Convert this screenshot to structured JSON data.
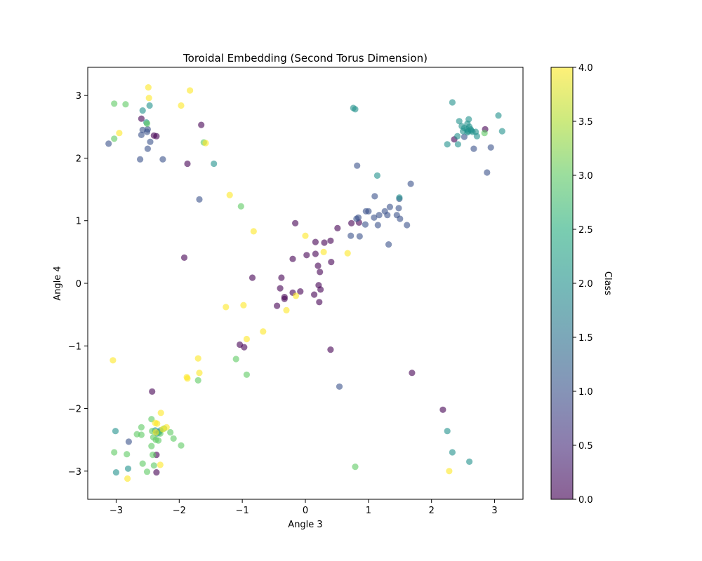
{
  "chart_data": {
    "type": "scatter",
    "title": "Toroidal Embedding (Second Torus Dimension)",
    "xlabel": "Angle 3",
    "ylabel": "Angle 4",
    "xlim": [
      -3.45,
      3.45
    ],
    "ylim": [
      -3.45,
      3.45
    ],
    "xticks": [
      -3,
      -2,
      -1,
      0,
      1,
      2,
      3
    ],
    "yticks": [
      -3,
      -2,
      -1,
      0,
      1,
      2,
      3
    ],
    "xtick_labels": [
      "−3",
      "−2",
      "−1",
      "0",
      "1",
      "2",
      "3"
    ],
    "ytick_labels": [
      "−3",
      "−2",
      "−1",
      "0",
      "1",
      "2",
      "3"
    ],
    "grid": false,
    "colormap": "viridis",
    "point_alpha": 0.6,
    "colorbar": {
      "label": "Class",
      "range": [
        0.0,
        4.0
      ],
      "ticks": [
        0.0,
        0.5,
        1.0,
        1.5,
        2.0,
        2.5,
        3.0,
        3.5,
        4.0
      ],
      "tick_labels": [
        "0.0",
        "0.5",
        "1.0",
        "1.5",
        "2.0",
        "2.5",
        "3.0",
        "3.5",
        "4.0"
      ]
    },
    "series": [
      {
        "class": 0,
        "color": "#440154",
        "points": [
          [
            -0.16,
            0.96
          ],
          [
            0.16,
            0.66
          ],
          [
            0.3,
            0.65
          ],
          [
            0.4,
            0.68
          ],
          [
            0.51,
            0.88
          ],
          [
            0.02,
            0.45
          ],
          [
            0.16,
            0.47
          ],
          [
            -0.2,
            0.39
          ],
          [
            0.41,
            0.34
          ],
          [
            0.2,
            0.28
          ],
          [
            0.23,
            0.18
          ],
          [
            -0.84,
            0.09
          ],
          [
            -0.38,
            0.09
          ],
          [
            -0.4,
            -0.08
          ],
          [
            -0.2,
            -0.15
          ],
          [
            -0.08,
            -0.13
          ],
          [
            0.21,
            -0.03
          ],
          [
            0.24,
            -0.1
          ],
          [
            -0.33,
            -0.22
          ],
          [
            -0.33,
            -0.25
          ],
          [
            0.14,
            -0.18
          ],
          [
            0.22,
            -0.3
          ],
          [
            -0.45,
            -0.36
          ],
          [
            -1.04,
            -0.98
          ],
          [
            -0.97,
            -1.02
          ],
          [
            0.4,
            -1.06
          ],
          [
            -1.92,
            0.41
          ],
          [
            -1.87,
            1.91
          ],
          [
            -1.65,
            2.53
          ],
          [
            -2.4,
            2.36
          ],
          [
            -2.36,
            2.35
          ],
          [
            -2.6,
            2.63
          ],
          [
            -2.43,
            -1.73
          ],
          [
            -2.36,
            -2.74
          ],
          [
            -2.36,
            -3.02
          ],
          [
            1.69,
            -1.43
          ],
          [
            2.18,
            -2.02
          ],
          [
            2.85,
            2.46
          ],
          [
            2.36,
            2.3
          ],
          [
            0.73,
            0.96
          ],
          [
            0.85,
            0.97
          ]
        ]
      },
      {
        "class": 1,
        "color": "#3b528b",
        "points": [
          [
            -3.12,
            2.23
          ],
          [
            -2.62,
            1.98
          ],
          [
            -2.26,
            1.98
          ],
          [
            -2.5,
            2.15
          ],
          [
            -2.46,
            2.26
          ],
          [
            -2.6,
            2.37
          ],
          [
            -2.51,
            2.42
          ],
          [
            -2.5,
            2.46
          ],
          [
            -2.58,
            2.45
          ],
          [
            -1.68,
            1.34
          ],
          [
            0.82,
            1.88
          ],
          [
            1.67,
            1.59
          ],
          [
            1.1,
            1.39
          ],
          [
            1.49,
            1.35
          ],
          [
            1.34,
            1.22
          ],
          [
            1.26,
            1.15
          ],
          [
            1.48,
            1.2
          ],
          [
            1.0,
            1.15
          ],
          [
            0.96,
            1.15
          ],
          [
            1.17,
            1.09
          ],
          [
            1.09,
            1.05
          ],
          [
            1.3,
            1.09
          ],
          [
            1.45,
            1.09
          ],
          [
            1.5,
            1.03
          ],
          [
            0.81,
            1.03
          ],
          [
            0.84,
            1.05
          ],
          [
            0.95,
            0.94
          ],
          [
            1.15,
            0.93
          ],
          [
            1.61,
            0.93
          ],
          [
            0.72,
            0.76
          ],
          [
            0.86,
            0.75
          ],
          [
            1.32,
            0.62
          ],
          [
            0.54,
            -1.65
          ],
          [
            2.67,
            2.15
          ],
          [
            2.94,
            2.17
          ],
          [
            2.88,
            1.77
          ],
          [
            2.52,
            2.34
          ],
          [
            -2.8,
            -2.53
          ]
        ]
      },
      {
        "class": 2,
        "color": "#21918c",
        "points": [
          [
            -2.47,
            2.84
          ],
          [
            -2.58,
            2.76
          ],
          [
            -2.52,
            2.57
          ],
          [
            -1.45,
            1.91
          ],
          [
            0.76,
            2.8
          ],
          [
            0.79,
            2.78
          ],
          [
            2.33,
            2.89
          ],
          [
            3.06,
            2.68
          ],
          [
            3.12,
            2.43
          ],
          [
            2.25,
            2.22
          ],
          [
            2.42,
            2.22
          ],
          [
            2.44,
            2.59
          ],
          [
            2.48,
            2.51
          ],
          [
            2.56,
            2.46
          ],
          [
            2.59,
            2.62
          ],
          [
            2.57,
            2.55
          ],
          [
            2.6,
            2.5
          ],
          [
            2.62,
            2.46
          ],
          [
            2.65,
            2.42
          ],
          [
            2.7,
            2.42
          ],
          [
            2.72,
            2.35
          ],
          [
            2.58,
            2.43
          ],
          [
            2.5,
            2.43
          ],
          [
            2.57,
            2.41
          ],
          [
            2.63,
            2.44
          ],
          [
            2.52,
            2.48
          ],
          [
            2.41,
            2.35
          ],
          [
            1.14,
            1.72
          ],
          [
            1.49,
            1.37
          ],
          [
            2.25,
            -2.36
          ],
          [
            2.33,
            -2.7
          ],
          [
            2.6,
            -2.85
          ],
          [
            -3.01,
            -2.36
          ],
          [
            -3.0,
            -3.02
          ],
          [
            -2.81,
            -2.96
          ],
          [
            -2.38,
            -2.35
          ],
          [
            -2.32,
            -2.38
          ],
          [
            -2.3,
            -2.35
          ],
          [
            -2.35,
            -2.4
          ]
        ]
      },
      {
        "class": 3,
        "color": "#5ec962",
        "points": [
          [
            -3.03,
            2.87
          ],
          [
            -2.85,
            2.86
          ],
          [
            -3.03,
            2.31
          ],
          [
            -2.51,
            2.55
          ],
          [
            -1.61,
            2.25
          ],
          [
            -1.02,
            1.23
          ],
          [
            -1.1,
            -1.21
          ],
          [
            -0.93,
            -1.46
          ],
          [
            -1.7,
            -1.55
          ],
          [
            0.79,
            -2.93
          ],
          [
            2.84,
            2.4
          ],
          [
            -3.03,
            -2.7
          ],
          [
            -2.83,
            -2.73
          ],
          [
            -2.67,
            -2.41
          ],
          [
            -2.6,
            -2.3
          ],
          [
            -2.6,
            -2.42
          ],
          [
            -2.44,
            -2.17
          ],
          [
            -2.43,
            -2.36
          ],
          [
            -2.41,
            -2.46
          ],
          [
            -2.37,
            -2.5
          ],
          [
            -2.33,
            -2.51
          ],
          [
            -2.3,
            -2.4
          ],
          [
            -2.24,
            -2.32
          ],
          [
            -2.14,
            -2.38
          ],
          [
            -2.09,
            -2.48
          ],
          [
            -1.97,
            -2.59
          ],
          [
            -2.44,
            -2.6
          ],
          [
            -2.42,
            -2.74
          ],
          [
            -2.4,
            -2.91
          ],
          [
            -2.58,
            -2.88
          ],
          [
            -2.51,
            -3.01
          ]
        ]
      },
      {
        "class": 4,
        "color": "#fde725",
        "points": [
          [
            -2.49,
            3.13
          ],
          [
            -1.83,
            3.08
          ],
          [
            -2.48,
            2.96
          ],
          [
            -1.97,
            2.84
          ],
          [
            -2.95,
            2.4
          ],
          [
            -1.58,
            2.24
          ],
          [
            -1.2,
            1.41
          ],
          [
            -0.82,
            0.83
          ],
          [
            0.0,
            0.76
          ],
          [
            0.29,
            0.5
          ],
          [
            0.67,
            0.48
          ],
          [
            -0.15,
            -0.2
          ],
          [
            -0.3,
            -0.43
          ],
          [
            -1.26,
            -0.38
          ],
          [
            -0.98,
            -0.35
          ],
          [
            -0.67,
            -0.77
          ],
          [
            -0.93,
            -0.89
          ],
          [
            -1.7,
            -1.2
          ],
          [
            -1.68,
            -1.43
          ],
          [
            -1.88,
            -1.5
          ],
          [
            -1.87,
            -1.52
          ],
          [
            -3.05,
            -1.23
          ],
          [
            -2.29,
            -2.07
          ],
          [
            -2.38,
            -2.23
          ],
          [
            -2.35,
            -2.24
          ],
          [
            -2.2,
            -2.3
          ],
          [
            -2.26,
            -2.33
          ],
          [
            -2.37,
            -2.38
          ],
          [
            -2.3,
            -2.9
          ],
          [
            -2.82,
            -3.12
          ],
          [
            2.28,
            -3.0
          ]
        ]
      }
    ]
  }
}
